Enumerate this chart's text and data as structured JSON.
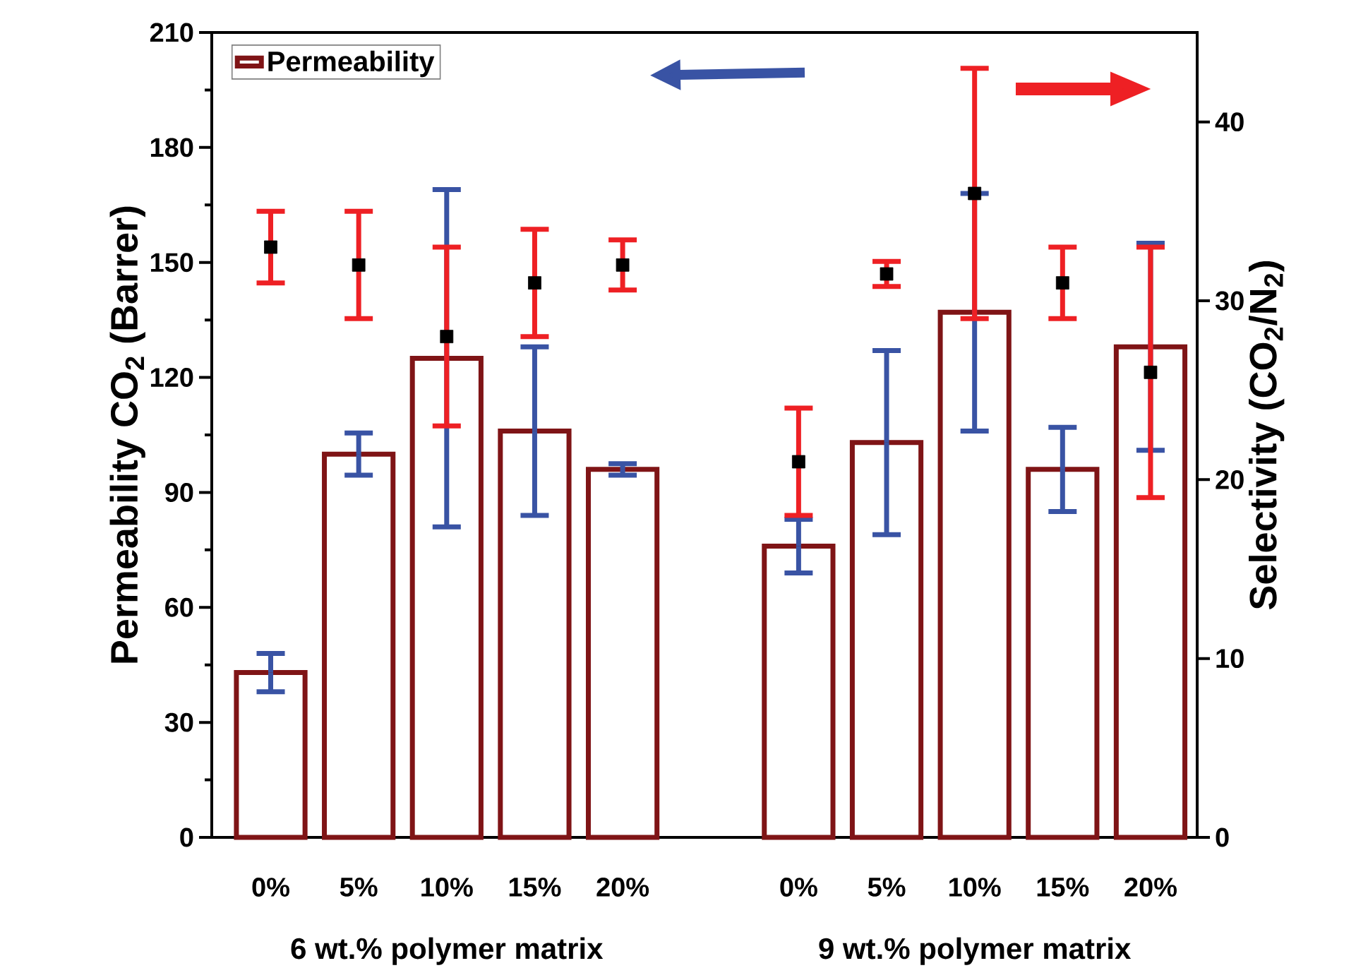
{
  "chart_data": {
    "type": "bar",
    "categories": [
      "0%",
      "5%",
      "10%",
      "15%",
      "20%",
      null,
      "0%",
      "5%",
      "10%",
      "15%",
      "20%"
    ],
    "ylabel": "Permeability CO$_{2}$ (Barrer)",
    "y2label": "Selectivity (CO$_{2}$/N$_{2}$)",
    "ylim": [
      0,
      210
    ],
    "yticks": [
      0,
      30,
      60,
      90,
      120,
      150,
      180,
      210
    ],
    "y2lim": [
      0,
      45
    ],
    "y2ticks": [
      0,
      10,
      20,
      30,
      40
    ],
    "legend": "top left",
    "marker": "square",
    "annotations": [
      "6 wt.% polymer matrix",
      "9 wt.% polymer matrix"
    ],
    "series": [
      {
        "name": "Permeability",
        "color": "#7f1416",
        "values": [
          43,
          100,
          125,
          106,
          96,
          null,
          76,
          103,
          137,
          96,
          128
        ],
        "errors": [
          5,
          5.5,
          44,
          22,
          1.5,
          null,
          7,
          24,
          31,
          11,
          27
        ]
      },
      {
        "type": "scatter",
        "axis": "y2",
        "color": "#000000",
        "values": [
          33,
          32,
          28,
          31,
          32,
          null,
          21,
          31.5,
          36,
          31,
          26
        ],
        "errors": [
          2,
          3,
          5,
          3,
          1.4,
          null,
          3,
          0.7,
          7,
          2,
          7
        ]
      }
    ]
  }
}
